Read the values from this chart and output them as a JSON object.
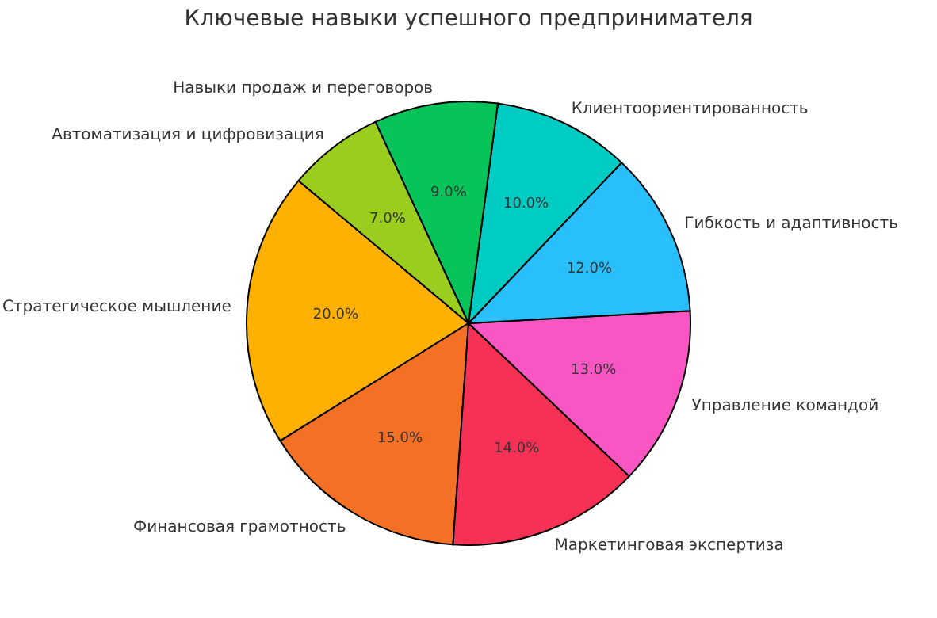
{
  "chart_data": {
    "type": "pie",
    "title": "Ключевые навыки успешного предпринимателя",
    "categories": [
      "Стратегическое мышление",
      "Финансовая грамотность",
      "Маркетинговая экспертиза",
      "Управление командой",
      "Гибкость и адаптивность",
      "Клиентоориентированность",
      "Навыки продаж и переговоров",
      "Автоматизация и цифровизация"
    ],
    "values": [
      20,
      15,
      14,
      13,
      12,
      10,
      9,
      7
    ],
    "value_labels": [
      "20.0%",
      "15.0%",
      "14.0%",
      "13.0%",
      "12.0%",
      "10.0%",
      "9.0%",
      "7.0%"
    ],
    "colors": [
      "#ffb000",
      "#f47025",
      "#f73155",
      "#f956c4",
      "#29bffc",
      "#00ccc3",
      "#06c45a",
      "#9acd1e"
    ]
  }
}
